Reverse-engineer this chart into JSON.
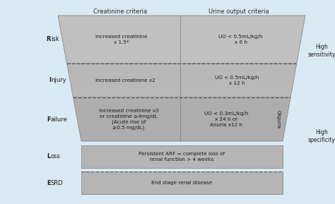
{
  "bg_color": "#daeaf5",
  "trap_fill_risk": "#c0c0c0",
  "trap_fill_injury": "#b8b8b8",
  "trap_fill_failure": "#adadad",
  "rect_fill_loss": "#b5b5b5",
  "rect_fill_esrd": "#b5b5b5",
  "edge_color": "#888888",
  "divider_color": "#555555",
  "text_color": "#1a1a1a",
  "header_color": "#2a2a2a",
  "title_creatinine": "Creatinine criteria",
  "title_urine": "Urine output criteria",
  "creatinine_texts": [
    "Increased creatinine\nx 1.5*",
    "Increased creatinine x2",
    "Increased creatinine x3\nor creatinine ≥4mg/dL\n(Acute rise of\n≥0.5 mg/dL)"
  ],
  "urine_texts": [
    "UO < 0.5mL/kg/h\nx 6 h",
    "UO < 0.5mL/kg/h\nx 12 h",
    "UO < 0.3mL/kg/h\nx 24 h or\nAnuria x12 h"
  ],
  "row_labels_bold": [
    "R",
    "I",
    "F",
    "L",
    "E"
  ],
  "row_labels_rest": [
    "isk",
    "njury",
    "ailure",
    "oss",
    "SRD"
  ],
  "bottom_texts": [
    "Persistent ARF = complete loss of\nrenal function > 4 weeks",
    "End stage renal disease"
  ],
  "oliguria_text": "Oliguria",
  "right_texts": [
    "High\nsensitivity",
    "High\nspecificity"
  ]
}
